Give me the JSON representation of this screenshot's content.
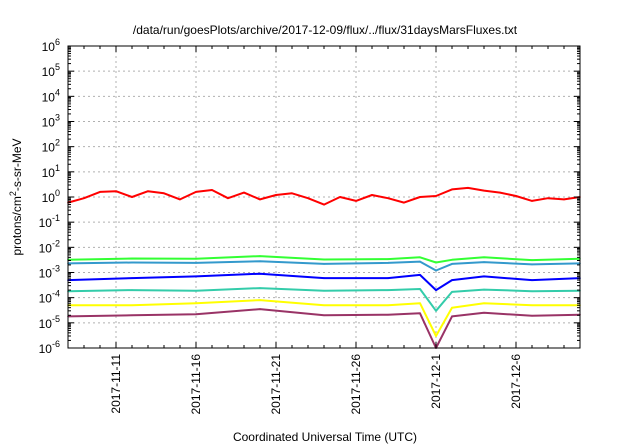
{
  "chart_data": {
    "type": "line",
    "title": "/data/run/goesPlots/archive/2017-12-09/flux/../flux/31daysMarsFluxes.txt",
    "xlabel": "Coordinated Universal Time (UTC)",
    "ylabel": "protons/cm²-s-sr-MeV",
    "ylabel_parts": {
      "base": "protons/cm",
      "sup": "2",
      "rest": "-s-sr-MeV"
    },
    "x_range": [
      "2017-11-08",
      "2017-12-10"
    ],
    "y_log_range": [
      -6,
      6
    ],
    "y_scale": "log",
    "y_ticks": [
      {
        "base": "10",
        "exp": "-6"
      },
      {
        "base": "10",
        "exp": "-5"
      },
      {
        "base": "10",
        "exp": "-4"
      },
      {
        "base": "10",
        "exp": "-3"
      },
      {
        "base": "10",
        "exp": "-2"
      },
      {
        "base": "10",
        "exp": "-1"
      },
      {
        "base": "10",
        "exp": "0"
      },
      {
        "base": "10",
        "exp": "1"
      },
      {
        "base": "10",
        "exp": "2"
      },
      {
        "base": "10",
        "exp": "3"
      },
      {
        "base": "10",
        "exp": "4"
      },
      {
        "base": "10",
        "exp": "5"
      },
      {
        "base": "10",
        "exp": "6"
      }
    ],
    "x_ticks": [
      {
        "label": "2017-11-11",
        "date": "2017-11-11"
      },
      {
        "label": "2017-11-16",
        "date": "2017-11-16"
      },
      {
        "label": "2017-11-21",
        "date": "2017-11-21"
      },
      {
        "label": "2017-11-26",
        "date": "2017-11-26"
      },
      {
        "label": "2017-12-1",
        "date": "2017-12-01"
      },
      {
        "label": "2017-12-6",
        "date": "2017-12-06"
      }
    ],
    "grid": true,
    "legend": "none",
    "series": [
      {
        "color": "#ff0000",
        "values": [
          {
            "date": "2017-11-08",
            "y": 0.6
          },
          {
            "date": "2017-11-09",
            "y": 0.9
          },
          {
            "date": "2017-11-10",
            "y": 1.6
          },
          {
            "date": "2017-11-11",
            "y": 1.7
          },
          {
            "date": "2017-11-12",
            "y": 1.0
          },
          {
            "date": "2017-11-13",
            "y": 1.7
          },
          {
            "date": "2017-11-14",
            "y": 1.4
          },
          {
            "date": "2017-11-15",
            "y": 0.8
          },
          {
            "date": "2017-11-16",
            "y": 1.6
          },
          {
            "date": "2017-11-17",
            "y": 1.9
          },
          {
            "date": "2017-11-18",
            "y": 0.9
          },
          {
            "date": "2017-11-19",
            "y": 1.5
          },
          {
            "date": "2017-11-20",
            "y": 0.8
          },
          {
            "date": "2017-11-21",
            "y": 1.2
          },
          {
            "date": "2017-11-22",
            "y": 1.4
          },
          {
            "date": "2017-11-23",
            "y": 0.9
          },
          {
            "date": "2017-11-24",
            "y": 0.5
          },
          {
            "date": "2017-11-25",
            "y": 1.0
          },
          {
            "date": "2017-11-26",
            "y": 0.7
          },
          {
            "date": "2017-11-27",
            "y": 1.2
          },
          {
            "date": "2017-11-28",
            "y": 0.9
          },
          {
            "date": "2017-11-29",
            "y": 0.6
          },
          {
            "date": "2017-11-30",
            "y": 1.0
          },
          {
            "date": "2017-12-01",
            "y": 1.1
          },
          {
            "date": "2017-12-02",
            "y": 2.0
          },
          {
            "date": "2017-12-03",
            "y": 2.3
          },
          {
            "date": "2017-12-04",
            "y": 1.8
          },
          {
            "date": "2017-12-05",
            "y": 1.5
          },
          {
            "date": "2017-12-06",
            "y": 1.1
          },
          {
            "date": "2017-12-07",
            "y": 0.7
          },
          {
            "date": "2017-12-08",
            "y": 0.9
          },
          {
            "date": "2017-12-09",
            "y": 0.8
          },
          {
            "date": "2017-12-10",
            "y": 1.0
          }
        ]
      },
      {
        "color": "#33ff33",
        "values": [
          {
            "date": "2017-11-08",
            "y": 0.0032
          },
          {
            "date": "2017-11-12",
            "y": 0.0036
          },
          {
            "date": "2017-11-16",
            "y": 0.0035
          },
          {
            "date": "2017-11-20",
            "y": 0.0045
          },
          {
            "date": "2017-11-24",
            "y": 0.0033
          },
          {
            "date": "2017-11-28",
            "y": 0.0034
          },
          {
            "date": "2017-11-30",
            "y": 0.004
          },
          {
            "date": "2017-12-01",
            "y": 0.0025
          },
          {
            "date": "2017-12-02",
            "y": 0.0032
          },
          {
            "date": "2017-12-04",
            "y": 0.004
          },
          {
            "date": "2017-12-07",
            "y": 0.0031
          },
          {
            "date": "2017-12-10",
            "y": 0.0035
          }
        ]
      },
      {
        "color": "#3399cc",
        "values": [
          {
            "date": "2017-11-08",
            "y": 0.0023
          },
          {
            "date": "2017-11-12",
            "y": 0.0025
          },
          {
            "date": "2017-11-16",
            "y": 0.0024
          },
          {
            "date": "2017-11-20",
            "y": 0.0028
          },
          {
            "date": "2017-11-24",
            "y": 0.0022
          },
          {
            "date": "2017-11-28",
            "y": 0.0024
          },
          {
            "date": "2017-11-30",
            "y": 0.0027
          },
          {
            "date": "2017-12-01",
            "y": 0.0012
          },
          {
            "date": "2017-12-02",
            "y": 0.0022
          },
          {
            "date": "2017-12-04",
            "y": 0.0026
          },
          {
            "date": "2017-12-07",
            "y": 0.0021
          },
          {
            "date": "2017-12-10",
            "y": 0.0023
          }
        ]
      },
      {
        "color": "#0000ff",
        "values": [
          {
            "date": "2017-11-08",
            "y": 0.0005
          },
          {
            "date": "2017-11-12",
            "y": 0.0006
          },
          {
            "date": "2017-11-16",
            "y": 0.0007
          },
          {
            "date": "2017-11-20",
            "y": 0.0009
          },
          {
            "date": "2017-11-24",
            "y": 0.0006
          },
          {
            "date": "2017-11-28",
            "y": 0.0006
          },
          {
            "date": "2017-11-30",
            "y": 0.0008
          },
          {
            "date": "2017-12-01",
            "y": 0.0002
          },
          {
            "date": "2017-12-02",
            "y": 0.0005
          },
          {
            "date": "2017-12-04",
            "y": 0.0007
          },
          {
            "date": "2017-12-07",
            "y": 0.0005
          },
          {
            "date": "2017-12-10",
            "y": 0.0006
          }
        ]
      },
      {
        "color": "#33ccaa",
        "values": [
          {
            "date": "2017-11-08",
            "y": 0.00018
          },
          {
            "date": "2017-11-12",
            "y": 0.0002
          },
          {
            "date": "2017-11-16",
            "y": 0.00019
          },
          {
            "date": "2017-11-20",
            "y": 0.00024
          },
          {
            "date": "2017-11-24",
            "y": 0.00019
          },
          {
            "date": "2017-11-28",
            "y": 0.0002
          },
          {
            "date": "2017-11-30",
            "y": 0.00022
          },
          {
            "date": "2017-12-01",
            "y": 3e-05
          },
          {
            "date": "2017-12-02",
            "y": 0.00017
          },
          {
            "date": "2017-12-04",
            "y": 0.00021
          },
          {
            "date": "2017-12-07",
            "y": 0.00018
          },
          {
            "date": "2017-12-10",
            "y": 0.00019
          }
        ]
      },
      {
        "color": "#ffff00",
        "values": [
          {
            "date": "2017-11-08",
            "y": 5e-05
          },
          {
            "date": "2017-11-12",
            "y": 5e-05
          },
          {
            "date": "2017-11-16",
            "y": 6e-05
          },
          {
            "date": "2017-11-20",
            "y": 8e-05
          },
          {
            "date": "2017-11-24",
            "y": 5e-05
          },
          {
            "date": "2017-11-28",
            "y": 5e-05
          },
          {
            "date": "2017-11-30",
            "y": 6e-05
          },
          {
            "date": "2017-12-01",
            "y": 3e-06
          },
          {
            "date": "2017-12-02",
            "y": 4e-05
          },
          {
            "date": "2017-12-04",
            "y": 6e-05
          },
          {
            "date": "2017-12-07",
            "y": 5e-05
          },
          {
            "date": "2017-12-10",
            "y": 5e-05
          }
        ]
      },
      {
        "color": "#993366",
        "values": [
          {
            "date": "2017-11-08",
            "y": 1.8e-05
          },
          {
            "date": "2017-11-12",
            "y": 2e-05
          },
          {
            "date": "2017-11-16",
            "y": 2.2e-05
          },
          {
            "date": "2017-11-20",
            "y": 3.5e-05
          },
          {
            "date": "2017-11-24",
            "y": 2e-05
          },
          {
            "date": "2017-11-28",
            "y": 2.1e-05
          },
          {
            "date": "2017-11-30",
            "y": 2.4e-05
          },
          {
            "date": "2017-12-01",
            "y": 1e-06
          },
          {
            "date": "2017-12-02",
            "y": 1.8e-05
          },
          {
            "date": "2017-12-04",
            "y": 2.5e-05
          },
          {
            "date": "2017-12-07",
            "y": 1.9e-05
          },
          {
            "date": "2017-12-10",
            "y": 2.1e-05
          }
        ]
      }
    ]
  }
}
